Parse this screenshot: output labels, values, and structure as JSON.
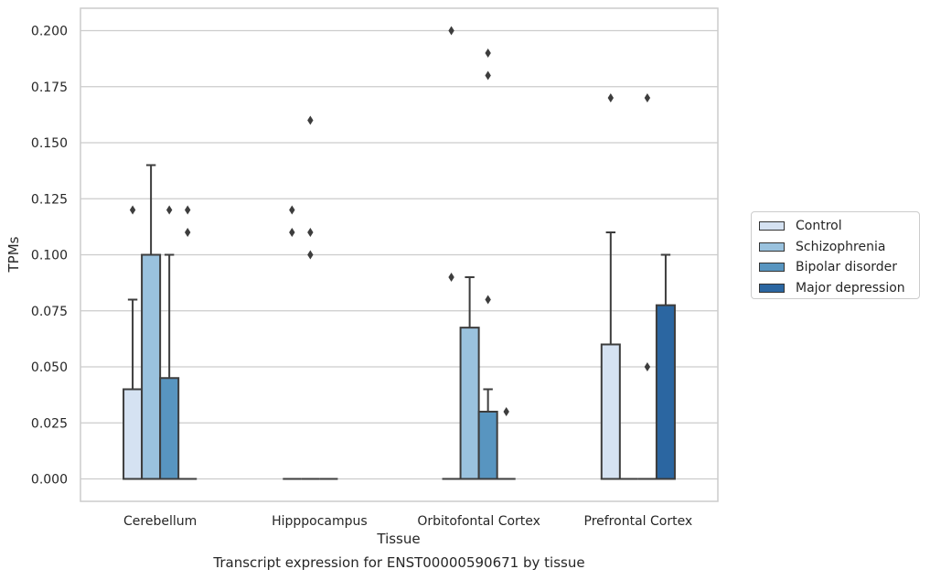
{
  "chart_data": {
    "type": "box",
    "caption": "Transcript expression for ENST00000590671 by tissue",
    "xlabel": "Tissue",
    "ylabel": "TPMs",
    "ylim": [
      -0.01,
      0.21
    ],
    "yticks": [
      "0.000",
      "0.025",
      "0.050",
      "0.075",
      "0.100",
      "0.125",
      "0.150",
      "0.175",
      "0.200"
    ],
    "ytick_values": [
      0,
      0.025,
      0.05,
      0.075,
      0.1,
      0.125,
      0.15,
      0.175,
      0.2
    ],
    "categories": [
      "Cerebellum",
      "Hipppocampus",
      "Orbitofontal Cortex",
      "Prefrontal Cortex"
    ],
    "legend_placement": "right",
    "grid": true,
    "series": [
      {
        "name": "Control",
        "color": "#d5e2f2",
        "boxes": [
          {
            "q1": 0,
            "median": 0,
            "q3": 0.04,
            "whisker_low": 0,
            "whisker_high": 0.08,
            "outliers": [
              0.12
            ]
          },
          {
            "q1": 0,
            "median": 0,
            "q3": 0,
            "whisker_low": 0,
            "whisker_high": 0,
            "outliers": [
              0.12,
              0.11
            ]
          },
          {
            "q1": 0,
            "median": 0,
            "q3": 0,
            "whisker_low": 0,
            "whisker_high": 0,
            "outliers": [
              0.09,
              0.2
            ]
          },
          {
            "q1": 0,
            "median": 0,
            "q3": 0.06,
            "whisker_low": 0,
            "whisker_high": 0.11,
            "outliers": [
              0.17
            ]
          }
        ]
      },
      {
        "name": "Schizophrenia",
        "color": "#9ac2de",
        "boxes": [
          {
            "q1": 0,
            "median": 0,
            "q3": 0.1,
            "whisker_low": 0,
            "whisker_high": 0.14,
            "outliers": []
          },
          {
            "q1": 0,
            "median": 0,
            "q3": 0,
            "whisker_low": 0,
            "whisker_high": 0,
            "outliers": [
              0.16,
              0.11,
              0.1
            ]
          },
          {
            "q1": 0,
            "median": 0,
            "q3": 0.0675,
            "whisker_low": 0,
            "whisker_high": 0.09,
            "outliers": []
          },
          {
            "q1": 0,
            "median": 0,
            "q3": 0,
            "whisker_low": 0,
            "whisker_high": 0,
            "outliers": []
          }
        ]
      },
      {
        "name": "Bipolar disorder",
        "color": "#5895c0",
        "boxes": [
          {
            "q1": 0,
            "median": 0,
            "q3": 0.045,
            "whisker_low": 0,
            "whisker_high": 0.1,
            "outliers": [
              0.12
            ]
          },
          {
            "q1": 0,
            "median": 0,
            "q3": 0,
            "whisker_low": 0,
            "whisker_high": 0,
            "outliers": []
          },
          {
            "q1": 0,
            "median": 0,
            "q3": 0.03,
            "whisker_low": 0,
            "whisker_high": 0.04,
            "outliers": [
              0.19,
              0.18,
              0.08
            ]
          },
          {
            "q1": 0,
            "median": 0,
            "q3": 0,
            "whisker_low": 0,
            "whisker_high": 0,
            "outliers": [
              0.17,
              0.05
            ]
          }
        ]
      },
      {
        "name": "Major depression",
        "color": "#2b66a1",
        "boxes": [
          {
            "q1": 0,
            "median": 0,
            "q3": 0,
            "whisker_low": 0,
            "whisker_high": 0,
            "outliers": [
              0.12,
              0.11
            ]
          },
          null,
          {
            "q1": 0,
            "median": 0,
            "q3": 0,
            "whisker_low": 0,
            "whisker_high": 0,
            "outliers": [
              0.03
            ]
          },
          {
            "q1": 0,
            "median": 0,
            "q3": 0.0775,
            "whisker_low": 0,
            "whisker_high": 0.1,
            "outliers": []
          }
        ]
      }
    ]
  }
}
